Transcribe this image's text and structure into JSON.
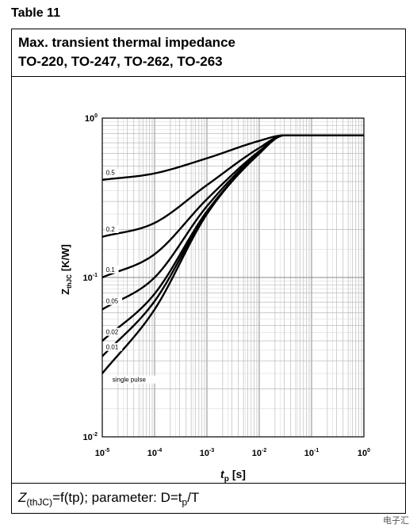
{
  "table_label": "Table 11",
  "header": {
    "line1": "Max. transient thermal impedance",
    "line2": "TO-220, TO-247, TO-262, TO-263"
  },
  "footer": {
    "z_symbol": "Z",
    "z_sub": "(thJC)",
    "formula_mid": "=f(tp); parameter: D=t",
    "tp_sub": "p",
    "formula_end": "/T"
  },
  "watermark": "电子汇",
  "chart_data": {
    "type": "line",
    "xscale": "log",
    "yscale": "log",
    "xlim": [
      1e-05,
      1
    ],
    "ylim": [
      0.01,
      1
    ],
    "xlabel_main": "t",
    "xlabel_sub": "p",
    "xlabel_unit": "[s]",
    "ylabel_main": "Z",
    "ylabel_sub": "thJC",
    "ylabel_unit": "[K/W]",
    "grid": true,
    "x_ticks": [
      {
        "base": "10",
        "exp": "-5"
      },
      {
        "base": "10",
        "exp": "-4"
      },
      {
        "base": "10",
        "exp": "-3"
      },
      {
        "base": "10",
        "exp": "-2"
      },
      {
        "base": "10",
        "exp": "-1"
      },
      {
        "base": "10",
        "exp": "0"
      }
    ],
    "y_ticks": [
      {
        "base": "10",
        "exp": "-2"
      },
      {
        "base": "10",
        "exp": "-1"
      },
      {
        "base": "10",
        "exp": "0"
      }
    ],
    "series": [
      {
        "name": "0.5",
        "x": [
          1e-05,
          0.0001,
          0.001,
          0.01,
          0.03,
          1
        ],
        "y": [
          0.41,
          0.45,
          0.56,
          0.72,
          0.78,
          0.78
        ]
      },
      {
        "name": "0.2",
        "x": [
          1e-05,
          0.0001,
          0.001,
          0.01,
          0.03,
          1
        ],
        "y": [
          0.18,
          0.22,
          0.38,
          0.65,
          0.78,
          0.78
        ]
      },
      {
        "name": "0.1",
        "x": [
          1e-05,
          0.0001,
          0.001,
          0.01,
          0.03,
          1
        ],
        "y": [
          0.1,
          0.14,
          0.31,
          0.62,
          0.78,
          0.78
        ]
      },
      {
        "name": "0.05",
        "x": [
          1e-05,
          0.0001,
          0.001,
          0.01,
          0.03,
          1
        ],
        "y": [
          0.063,
          0.1,
          0.28,
          0.61,
          0.78,
          0.78
        ]
      },
      {
        "name": "0.02",
        "x": [
          1e-05,
          0.0001,
          0.001,
          0.01,
          0.03,
          1
        ],
        "y": [
          0.04,
          0.079,
          0.26,
          0.6,
          0.78,
          0.78
        ]
      },
      {
        "name": "0.01",
        "x": [
          1e-05,
          0.0001,
          0.001,
          0.01,
          0.03,
          1
        ],
        "y": [
          0.032,
          0.071,
          0.255,
          0.6,
          0.78,
          0.78
        ]
      },
      {
        "name": "single pulse",
        "x": [
          1e-05,
          0.0001,
          0.001,
          0.01,
          0.03,
          1
        ],
        "y": [
          0.025,
          0.063,
          0.25,
          0.6,
          0.78,
          0.78
        ]
      }
    ],
    "curve_label_x": 1.1e-05
  }
}
